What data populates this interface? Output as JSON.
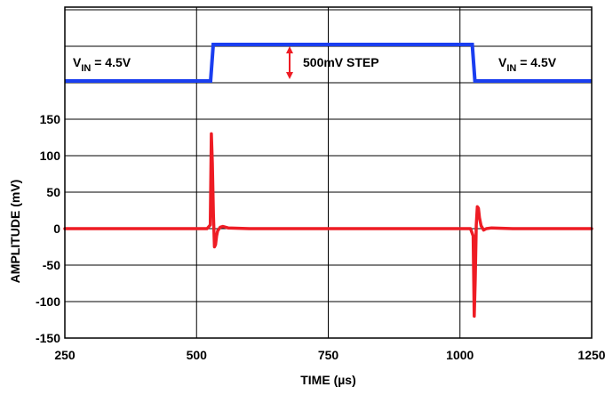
{
  "chart_data": {
    "type": "line",
    "title": "",
    "xlabel": "TIME (µs)",
    "ylabel": "AMPLITUDE (mV)",
    "xlim": [
      250,
      1250
    ],
    "ylim": [
      -150,
      150
    ],
    "x_ticks": [
      250,
      500,
      750,
      1000,
      1250
    ],
    "x_tick_labels": [
      "250",
      "500",
      "750",
      "1000",
      "1250"
    ],
    "y_ticks": [
      -150,
      -100,
      -50,
      0,
      50,
      100,
      150
    ],
    "y_tick_labels": [
      "-150",
      "-100",
      "-50",
      "0",
      "50",
      "100",
      "150"
    ],
    "grid": true,
    "colors": {
      "input_trace": "#1a3ef0",
      "output_trace": "#ee1c24",
      "arrow": "#ee1c24"
    },
    "input_step": {
      "name": "",
      "low_label": {
        "prefix": "V",
        "subscript": "IN",
        "suffix": " = 4.5V"
      },
      "step_label": "500mV STEP",
      "rise_time": 530,
      "fall_time": 1025
    },
    "series": [
      {
        "name": "",
        "x": [
          250,
          400,
          520,
          526,
          528,
          530,
          532,
          534,
          536,
          538,
          540,
          545,
          550,
          560,
          600,
          750,
          900,
          1020,
          1025,
          1027,
          1029,
          1031,
          1033,
          1035,
          1037,
          1040,
          1045,
          1050,
          1060,
          1100,
          1250
        ],
        "y": [
          0,
          0,
          0,
          5,
          130,
          90,
          20,
          -25,
          -22,
          -10,
          -3,
          2,
          3,
          1,
          0,
          0,
          0,
          0,
          -10,
          -120,
          -70,
          5,
          30,
          28,
          15,
          4,
          -2,
          0,
          1,
          0,
          0
        ]
      }
    ]
  }
}
